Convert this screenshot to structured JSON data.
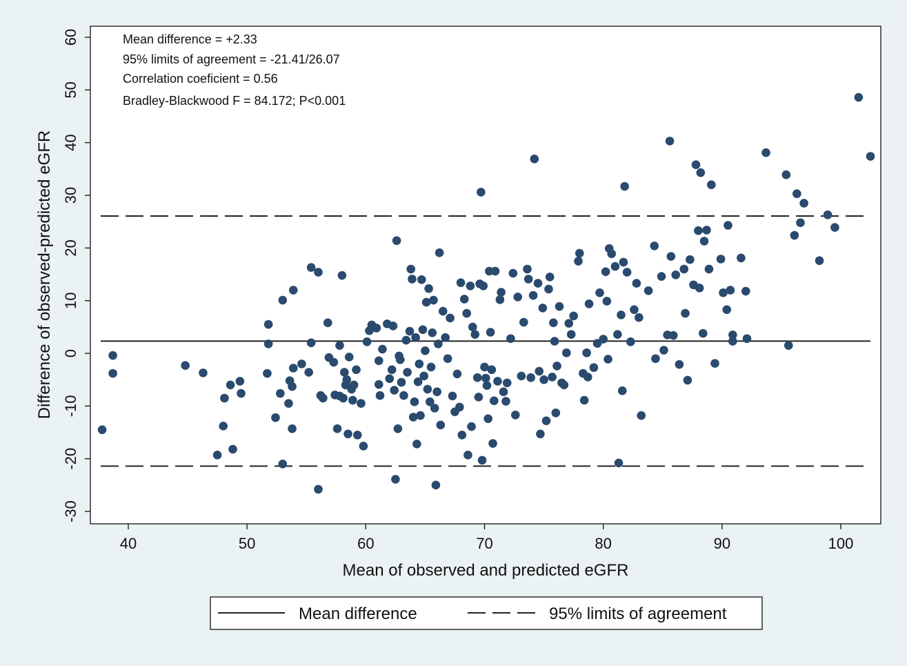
{
  "chart_data": {
    "type": "scatter",
    "title": "",
    "xlabel": "Mean of observed and predicted eGFR",
    "ylabel": "Difference of observed-predicted eGFR",
    "xlim": [
      37,
      104
    ],
    "ylim": [
      -33,
      62
    ],
    "x_ticks": [
      40,
      50,
      60,
      70,
      80,
      90,
      100
    ],
    "y_ticks": [
      -30,
      -20,
      -10,
      0,
      10,
      20,
      30,
      40,
      50,
      60
    ],
    "x_tick_labels": [
      "40",
      "50",
      "60",
      "70",
      "80",
      "90",
      "100"
    ],
    "y_tick_labels": [
      "-30",
      "-20",
      "-10",
      "0",
      "10",
      "20",
      "30",
      "40",
      "50",
      "60"
    ],
    "annotations": [
      "Mean difference = +2.33",
      "95% limits of agreement = -21.41/26.07",
      "Correlation coeficient = 0.56",
      "Bradley-Blackwood F = 84.172; P<0.001"
    ],
    "reference_lines": [
      {
        "name": "Mean difference",
        "y": 2.33,
        "style": "solid"
      },
      {
        "name": "95% limits of agreement",
        "y": 26.07,
        "style": "dashed"
      },
      {
        "name": "95% limits of agreement",
        "y": -21.41,
        "style": "dashed"
      }
    ],
    "legend": {
      "placement": "bottom",
      "entries": [
        "Mean difference",
        "95% limits of agreement"
      ]
    },
    "grid": false,
    "marker_color": "#2a4a6e",
    "series": [
      {
        "points": [
          [
            37.8,
            -14.5
          ],
          [
            38.7,
            -0.4
          ],
          [
            38.7,
            -3.8
          ],
          [
            44.8,
            -2.3
          ],
          [
            46.3,
            -3.7
          ],
          [
            47.5,
            -19.3
          ],
          [
            48.0,
            -13.8
          ],
          [
            48.1,
            -8.5
          ],
          [
            48.6,
            -6.0
          ],
          [
            48.8,
            -18.2
          ],
          [
            49.4,
            -5.3
          ],
          [
            49.5,
            -7.6
          ],
          [
            51.7,
            -3.8
          ],
          [
            51.8,
            5.5
          ],
          [
            51.8,
            1.8
          ],
          [
            52.4,
            -12.2
          ],
          [
            52.8,
            -7.6
          ],
          [
            53.0,
            -21.0
          ],
          [
            53.0,
            10.1
          ],
          [
            53.5,
            -9.5
          ],
          [
            53.6,
            -5.2
          ],
          [
            53.8,
            -6.3
          ],
          [
            53.8,
            -14.3
          ],
          [
            53.9,
            12.0
          ],
          [
            53.9,
            -2.8
          ],
          [
            54.6,
            -2.0
          ],
          [
            55.2,
            -3.6
          ],
          [
            55.4,
            2.0
          ],
          [
            55.4,
            16.3
          ],
          [
            56.0,
            15.4
          ],
          [
            56.0,
            -25.8
          ],
          [
            56.2,
            -8.0
          ],
          [
            56.4,
            -8.5
          ],
          [
            56.8,
            5.8
          ],
          [
            56.9,
            -0.8
          ],
          [
            57.3,
            -1.7
          ],
          [
            57.4,
            -7.9
          ],
          [
            57.6,
            -14.3
          ],
          [
            57.8,
            -8.1
          ],
          [
            57.8,
            1.5
          ],
          [
            58.0,
            14.8
          ],
          [
            58.1,
            -8.5
          ],
          [
            58.2,
            -3.6
          ],
          [
            58.3,
            -6.0
          ],
          [
            58.4,
            -5.0
          ],
          [
            58.5,
            -15.3
          ],
          [
            58.6,
            -0.7
          ],
          [
            58.8,
            -6.8
          ],
          [
            58.9,
            -8.9
          ],
          [
            59.0,
            -6.0
          ],
          [
            59.2,
            -3.1
          ],
          [
            59.3,
            -15.5
          ],
          [
            59.6,
            -9.5
          ],
          [
            59.8,
            -17.6
          ],
          [
            60.1,
            2.2
          ],
          [
            60.3,
            4.3
          ],
          [
            60.5,
            5.4
          ],
          [
            60.9,
            4.8
          ],
          [
            61.1,
            -1.4
          ],
          [
            61.1,
            -5.9
          ],
          [
            61.2,
            -8.0
          ],
          [
            61.4,
            0.8
          ],
          [
            61.8,
            5.6
          ],
          [
            62.0,
            -4.8
          ],
          [
            62.2,
            -3.1
          ],
          [
            62.3,
            5.2
          ],
          [
            62.4,
            -7.0
          ],
          [
            62.5,
            -23.9
          ],
          [
            62.6,
            21.4
          ],
          [
            62.7,
            -14.3
          ],
          [
            62.8,
            -0.5
          ],
          [
            62.9,
            -1.2
          ],
          [
            63.0,
            -5.5
          ],
          [
            63.2,
            -8.0
          ],
          [
            63.4,
            2.5
          ],
          [
            63.5,
            -3.6
          ],
          [
            63.7,
            4.2
          ],
          [
            63.8,
            16.0
          ],
          [
            63.9,
            14.1
          ],
          [
            64.0,
            -12.1
          ],
          [
            64.1,
            -9.2
          ],
          [
            64.2,
            3.0
          ],
          [
            64.3,
            -17.2
          ],
          [
            64.4,
            -5.4
          ],
          [
            64.5,
            -2.0
          ],
          [
            64.6,
            -11.8
          ],
          [
            64.7,
            14.0
          ],
          [
            64.8,
            4.5
          ],
          [
            64.9,
            -4.3
          ],
          [
            65.0,
            0.5
          ],
          [
            65.1,
            9.7
          ],
          [
            65.2,
            -6.8
          ],
          [
            65.3,
            12.3
          ],
          [
            65.4,
            -9.2
          ],
          [
            65.5,
            -2.6
          ],
          [
            65.6,
            3.9
          ],
          [
            65.7,
            10.1
          ],
          [
            65.8,
            -10.4
          ],
          [
            65.9,
            -25.0
          ],
          [
            66.0,
            -7.3
          ],
          [
            66.1,
            1.8
          ],
          [
            66.2,
            19.1
          ],
          [
            66.3,
            -13.6
          ],
          [
            66.5,
            8.0
          ],
          [
            66.7,
            3.0
          ],
          [
            66.9,
            -1.0
          ],
          [
            67.1,
            6.7
          ],
          [
            67.3,
            -8.1
          ],
          [
            67.5,
            -11.1
          ],
          [
            67.7,
            -3.9
          ],
          [
            67.9,
            -10.2
          ],
          [
            68.0,
            13.4
          ],
          [
            68.1,
            -15.5
          ],
          [
            68.3,
            10.3
          ],
          [
            68.5,
            7.6
          ],
          [
            68.6,
            -19.3
          ],
          [
            68.8,
            12.8
          ],
          [
            68.9,
            -13.9
          ],
          [
            69.0,
            5.0
          ],
          [
            69.2,
            3.6
          ],
          [
            69.4,
            -4.6
          ],
          [
            69.5,
            -8.3
          ],
          [
            69.6,
            13.2
          ],
          [
            69.7,
            30.6
          ],
          [
            69.8,
            -20.3
          ],
          [
            69.9,
            12.8
          ],
          [
            70.0,
            -2.6
          ],
          [
            70.1,
            -4.7
          ],
          [
            70.2,
            -6.1
          ],
          [
            70.3,
            -12.4
          ],
          [
            70.4,
            15.6
          ],
          [
            70.5,
            4.0
          ],
          [
            70.6,
            -3.1
          ],
          [
            70.7,
            -17.1
          ],
          [
            70.8,
            -9.0
          ],
          [
            70.9,
            15.6
          ],
          [
            71.1,
            -5.3
          ],
          [
            71.3,
            10.2
          ],
          [
            71.4,
            11.6
          ],
          [
            71.6,
            -7.3
          ],
          [
            71.8,
            -9.1
          ],
          [
            71.9,
            -5.6
          ],
          [
            72.2,
            2.8
          ],
          [
            72.4,
            15.2
          ],
          [
            72.6,
            -11.7
          ],
          [
            72.8,
            10.7
          ],
          [
            73.1,
            -4.3
          ],
          [
            73.3,
            5.9
          ],
          [
            73.6,
            16.0
          ],
          [
            73.7,
            14.1
          ],
          [
            73.9,
            -4.6
          ],
          [
            74.1,
            11.0
          ],
          [
            74.2,
            36.9
          ],
          [
            74.5,
            13.3
          ],
          [
            74.6,
            -3.4
          ],
          [
            74.7,
            -15.3
          ],
          [
            74.9,
            8.6
          ],
          [
            75.0,
            -5.0
          ],
          [
            75.2,
            -12.8
          ],
          [
            75.4,
            12.2
          ],
          [
            75.5,
            14.5
          ],
          [
            75.7,
            -4.5
          ],
          [
            75.8,
            5.8
          ],
          [
            75.9,
            2.3
          ],
          [
            76.0,
            -11.3
          ],
          [
            76.1,
            -2.4
          ],
          [
            76.3,
            8.9
          ],
          [
            76.5,
            -5.6
          ],
          [
            76.7,
            -6.0
          ],
          [
            76.9,
            0.1
          ],
          [
            77.1,
            5.7
          ],
          [
            77.3,
            3.6
          ],
          [
            77.5,
            7.1
          ],
          [
            77.9,
            17.5
          ],
          [
            78.0,
            19.0
          ],
          [
            78.3,
            -3.8
          ],
          [
            78.4,
            -8.9
          ],
          [
            78.6,
            0.1
          ],
          [
            78.7,
            -4.5
          ],
          [
            78.8,
            9.4
          ],
          [
            79.2,
            -2.7
          ],
          [
            79.5,
            1.9
          ],
          [
            79.7,
            11.5
          ],
          [
            80.0,
            2.7
          ],
          [
            80.2,
            15.5
          ],
          [
            80.3,
            9.9
          ],
          [
            80.4,
            -1.1
          ],
          [
            80.5,
            19.9
          ],
          [
            80.7,
            18.9
          ],
          [
            81.0,
            16.5
          ],
          [
            81.2,
            3.6
          ],
          [
            81.3,
            -20.8
          ],
          [
            81.5,
            7.3
          ],
          [
            81.6,
            -7.1
          ],
          [
            81.7,
            17.3
          ],
          [
            81.8,
            31.7
          ],
          [
            82.0,
            15.4
          ],
          [
            82.3,
            2.2
          ],
          [
            82.6,
            8.3
          ],
          [
            82.8,
            13.3
          ],
          [
            83.0,
            6.8
          ],
          [
            83.2,
            -11.8
          ],
          [
            83.8,
            11.9
          ],
          [
            84.3,
            20.4
          ],
          [
            84.4,
            -1.0
          ],
          [
            84.9,
            14.6
          ],
          [
            85.1,
            0.6
          ],
          [
            85.4,
            3.5
          ],
          [
            85.6,
            40.3
          ],
          [
            85.7,
            18.4
          ],
          [
            85.9,
            3.4
          ],
          [
            86.1,
            14.9
          ],
          [
            86.4,
            -2.1
          ],
          [
            86.8,
            16.0
          ],
          [
            86.9,
            7.6
          ],
          [
            87.1,
            -5.1
          ],
          [
            87.3,
            17.8
          ],
          [
            87.6,
            13.0
          ],
          [
            87.8,
            35.8
          ],
          [
            88.0,
            23.3
          ],
          [
            88.1,
            12.4
          ],
          [
            88.2,
            34.3
          ],
          [
            88.4,
            3.8
          ],
          [
            88.5,
            21.3
          ],
          [
            88.7,
            23.4
          ],
          [
            88.9,
            16.0
          ],
          [
            89.1,
            32.0
          ],
          [
            89.4,
            -1.9
          ],
          [
            89.9,
            17.9
          ],
          [
            90.1,
            11.5
          ],
          [
            90.4,
            8.3
          ],
          [
            90.5,
            24.3
          ],
          [
            90.7,
            12.0
          ],
          [
            90.9,
            3.5
          ],
          [
            90.9,
            2.3
          ],
          [
            91.6,
            18.1
          ],
          [
            92.0,
            11.8
          ],
          [
            92.1,
            2.8
          ],
          [
            93.7,
            38.1
          ],
          [
            95.4,
            33.9
          ],
          [
            95.6,
            1.5
          ],
          [
            96.1,
            22.4
          ],
          [
            96.3,
            30.3
          ],
          [
            96.6,
            24.8
          ],
          [
            96.9,
            28.5
          ],
          [
            98.2,
            17.6
          ],
          [
            98.9,
            26.3
          ],
          [
            99.5,
            23.9
          ],
          [
            101.5,
            48.6
          ],
          [
            102.5,
            37.4
          ]
        ]
      }
    ]
  }
}
